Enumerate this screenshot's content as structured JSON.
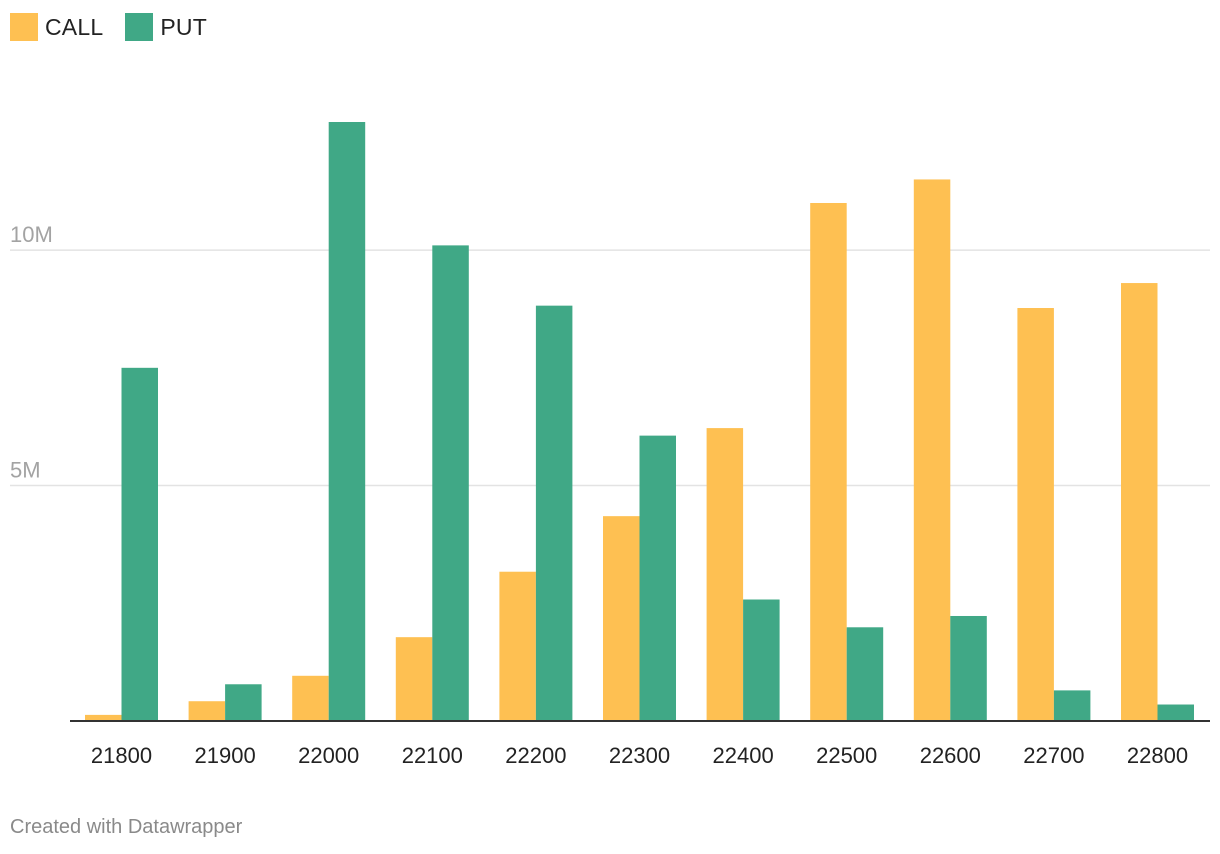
{
  "legend": {
    "items": [
      {
        "label": "CALL",
        "color": "#fec052"
      },
      {
        "label": "PUT",
        "color": "#40a886"
      }
    ]
  },
  "footer": {
    "text": "Created with Datawrapper"
  },
  "chart_data": {
    "type": "bar",
    "title": "",
    "xlabel": "",
    "ylabel": "",
    "categories": [
      "21800",
      "21900",
      "22000",
      "22100",
      "22200",
      "22300",
      "22400",
      "22500",
      "22600",
      "22700",
      "22800"
    ],
    "series": [
      {
        "name": "CALL",
        "color": "#fec052",
        "values": [
          0.13,
          0.42,
          0.96,
          1.78,
          3.17,
          4.35,
          6.22,
          11.0,
          11.5,
          8.77,
          9.3
        ]
      },
      {
        "name": "PUT",
        "color": "#40a886",
        "values": [
          7.5,
          0.78,
          12.72,
          10.1,
          8.82,
          6.06,
          2.58,
          1.99,
          2.23,
          0.65,
          0.35
        ]
      }
    ],
    "ylim": [
      0,
      12.72
    ],
    "yticks": [
      {
        "value": 5,
        "label": "5M"
      },
      {
        "value": 10,
        "label": "10M"
      }
    ],
    "grid": true,
    "legend_position": "top-left",
    "value_unit": "M"
  }
}
